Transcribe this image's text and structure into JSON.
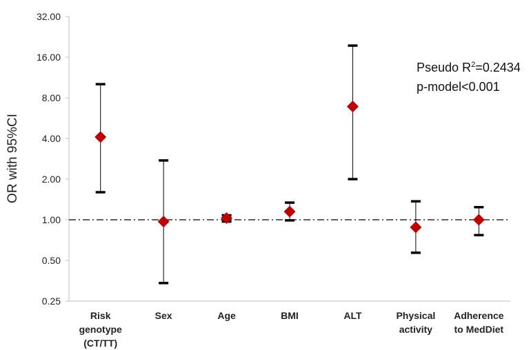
{
  "chart_data": {
    "type": "scatter",
    "ylabel": "OR with 95%CI",
    "yscale": "log2",
    "ylim": [
      0.25,
      32
    ],
    "yticks": [
      "0.25",
      "0.50",
      "1.00",
      "2.00",
      "4.00",
      "8.00",
      "16.00",
      "32.00"
    ],
    "ytick_values": [
      0.25,
      0.5,
      1,
      2,
      4,
      8,
      16,
      32
    ],
    "reference_line": 1.0,
    "categories": [
      [
        "Risk",
        "genotype",
        "(CT/TT)"
      ],
      [
        "Sex"
      ],
      [
        "Age"
      ],
      [
        "BMI"
      ],
      [
        "ALT"
      ],
      [
        "Physical",
        "activity"
      ],
      [
        "Adherence",
        "to MedDiet"
      ]
    ],
    "or": [
      4.1,
      0.97,
      1.03,
      1.15,
      6.9,
      0.88,
      1.0
    ],
    "ci_low": [
      1.6,
      0.34,
      0.97,
      0.99,
      2.0,
      0.57,
      0.77
    ],
    "ci_high": [
      10.1,
      2.75,
      1.08,
      1.34,
      19.5,
      1.37,
      1.24
    ],
    "marker_color": "#c00000",
    "annotation": {
      "line1_prefix": "Pseudo R",
      "line1_sup": "2",
      "line1_suffix": "=0.2434",
      "line2": "p-model<0.001"
    },
    "grid": false
  }
}
